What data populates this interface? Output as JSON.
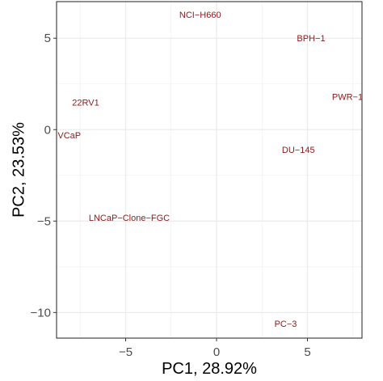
{
  "chart_data": {
    "type": "scatter",
    "title": "",
    "xlabel": "PC1, 28.92%",
    "ylabel": "PC2, 23.53%",
    "xlim": [
      -8.8,
      8.0
    ],
    "ylim": [
      -11.4,
      7.0
    ],
    "xticks": [
      -5,
      0,
      5
    ],
    "yticks": [
      -10,
      -5,
      0,
      5
    ],
    "xtick_labels": [
      "−5",
      "0",
      "5"
    ],
    "ytick_labels": [
      "−10",
      "−5",
      "0",
      "5"
    ],
    "grid": true,
    "label_color": "#8b1a1a",
    "points": [
      {
        "label": "NCI−H660",
        "x": -0.9,
        "y": 6.3
      },
      {
        "label": "BPH−1",
        "x": 5.2,
        "y": 5.0
      },
      {
        "label": "22RV1",
        "x": -7.2,
        "y": 1.5
      },
      {
        "label": "PWR−1",
        "x": 7.2,
        "y": 1.8
      },
      {
        "label": "VCaP",
        "x": -8.1,
        "y": -0.3
      },
      {
        "label": "DU−145",
        "x": 4.5,
        "y": -1.1
      },
      {
        "label": "LNCaP−Clone−FGC",
        "x": -4.8,
        "y": -4.8
      },
      {
        "label": "PC−3",
        "x": 3.8,
        "y": -10.6
      }
    ]
  }
}
